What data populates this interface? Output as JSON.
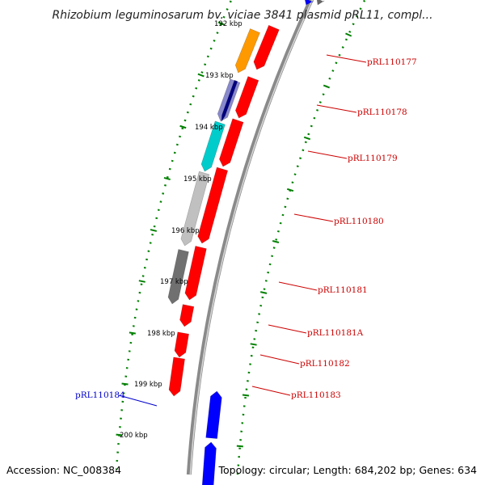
{
  "title": "Rhizobium leguminosarum bv. viciae 3841 plasmid pRL11, compl...",
  "footer": {
    "accession": "Accession: NC_008384",
    "summary": "Topology: circular; Length: 684,202 bp; Genes: 634"
  },
  "axis_ticks": [
    "192 kbp",
    "193 kbp",
    "194 kbp",
    "195 kbp",
    "196 kbp",
    "197 kbp",
    "198 kbp",
    "199 kbp",
    "200 kbp"
  ],
  "gene_labels": [
    {
      "text": "pRL110177",
      "color": "#cc0000",
      "strand": "plus"
    },
    {
      "text": "pRL110178",
      "color": "#cc0000",
      "strand": "plus"
    },
    {
      "text": "pRL110179",
      "color": "#cc0000",
      "strand": "plus"
    },
    {
      "text": "pRL110180",
      "color": "#cc0000",
      "strand": "plus"
    },
    {
      "text": "pRL110181",
      "color": "#cc0000",
      "strand": "plus"
    },
    {
      "text": "pRL110181A",
      "color": "#cc0000",
      "strand": "plus"
    },
    {
      "text": "pRL110182",
      "color": "#cc0000",
      "strand": "plus"
    },
    {
      "text": "pRL110183",
      "color": "#cc0000",
      "strand": "plus"
    },
    {
      "text": "pRL110184",
      "color": "#0000cc",
      "strand": "minus"
    }
  ],
  "colors": {
    "forward_gene": "#ff0000",
    "reverse_gene": "#0000ff",
    "backbone": "#999999",
    "tick_mark": "#008000",
    "cog_orange": "#ff9900",
    "cog_purple": "#8888cc",
    "cog_cyan": "#00cccc",
    "cog_lightgray": "#c0c0c0",
    "cog_darkgray": "#707070"
  }
}
